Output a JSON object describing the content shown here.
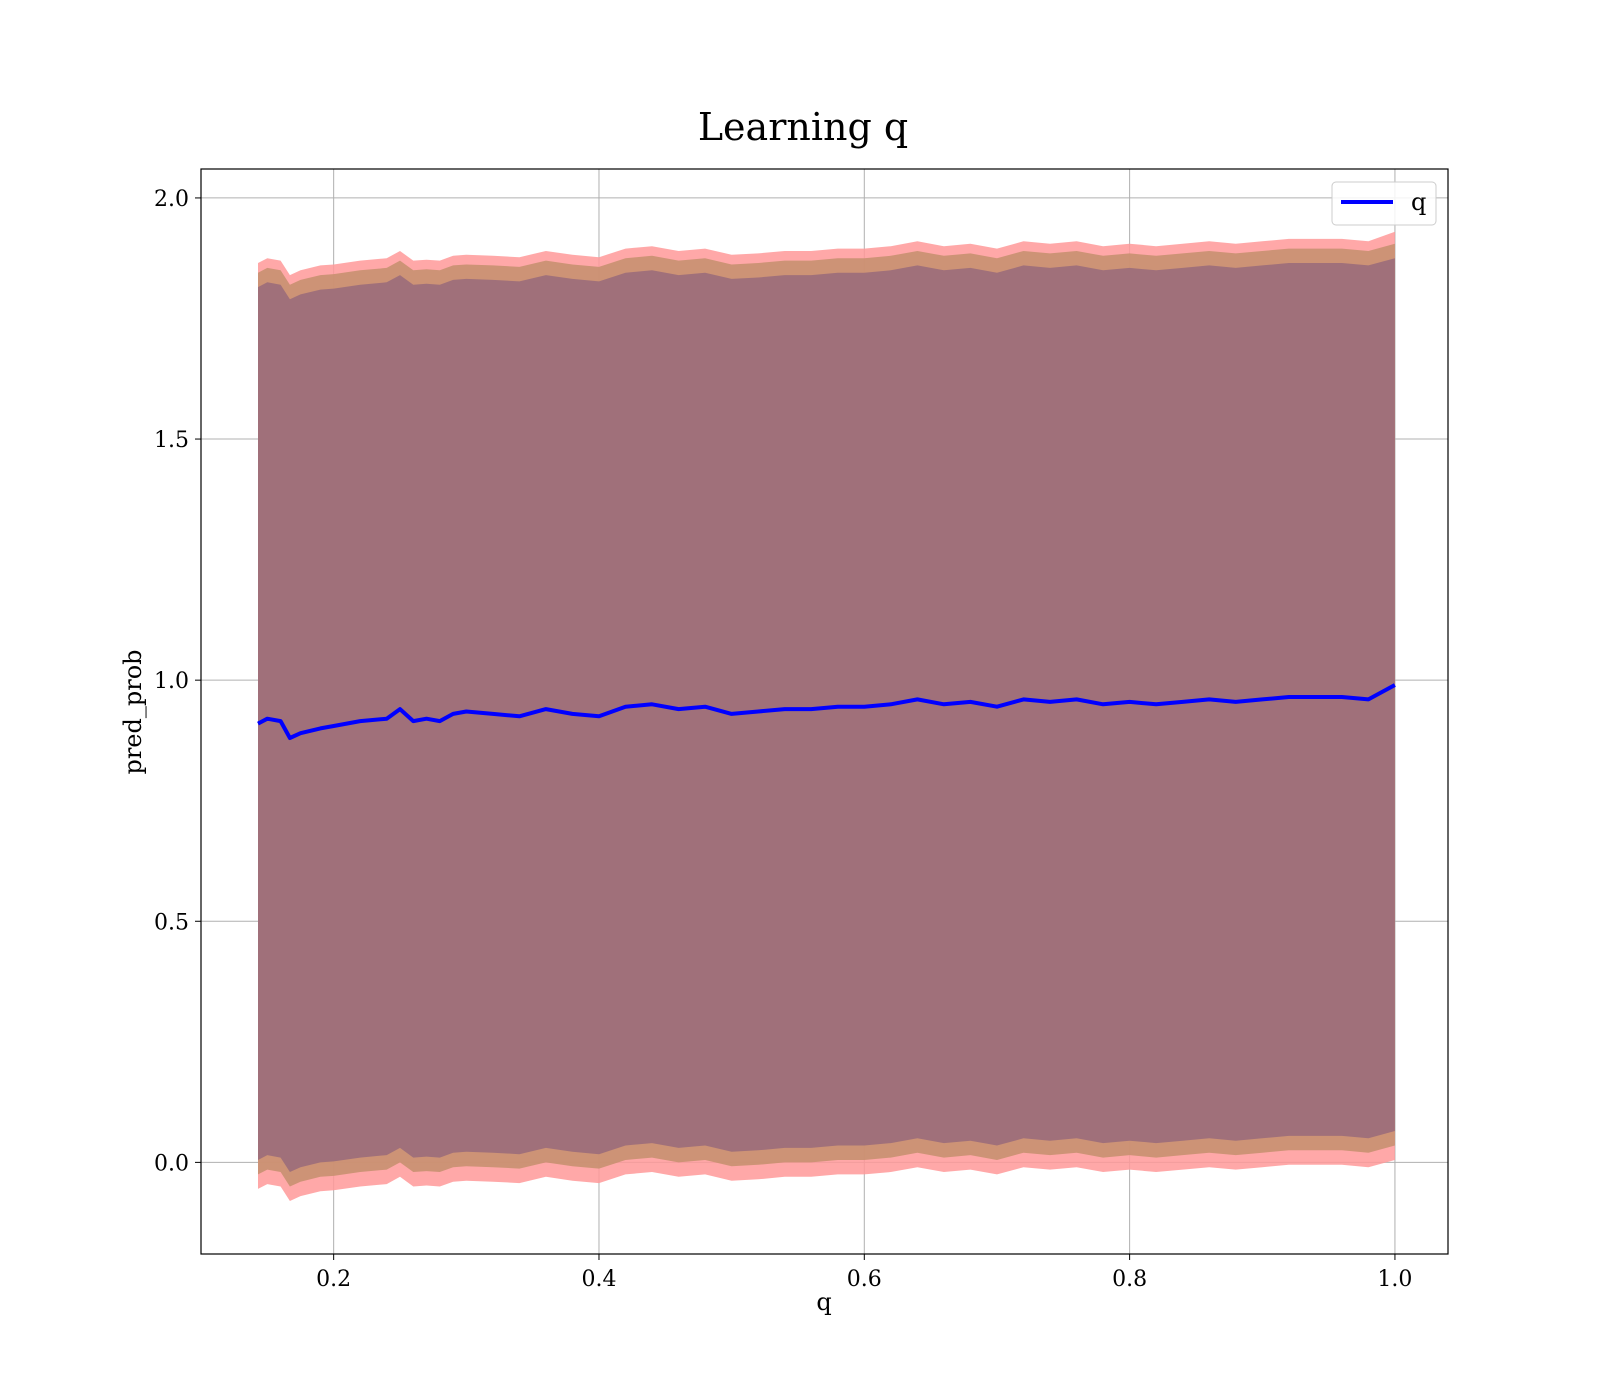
{
  "chart_data": {
    "type": "line",
    "title": "Learning q",
    "xlabel": "q",
    "ylabel": "pred_prob",
    "xlim": [
      0.1,
      1.04
    ],
    "ylim": [
      -0.19,
      2.06
    ],
    "xticks": [
      0.2,
      0.4,
      0.6,
      0.8,
      1.0
    ],
    "xtick_labels": [
      "0.2",
      "0.4",
      "0.6",
      "0.8",
      "1.0"
    ],
    "yticks": [
      0.0,
      0.5,
      1.0,
      1.5,
      2.0
    ],
    "ytick_labels": [
      "0.0",
      "0.5",
      "1.0",
      "1.5",
      "2.0"
    ],
    "grid": true,
    "legend": {
      "position": "top-right",
      "entries": [
        "q"
      ]
    },
    "colors": {
      "line": "#0000ff",
      "band_outer": "#ff9999",
      "band_mid": "#c89070",
      "band_inner": "#a0707a"
    },
    "series": [
      {
        "name": "q",
        "x": [
          0.143,
          0.15,
          0.16,
          0.167,
          0.175,
          0.19,
          0.2,
          0.22,
          0.24,
          0.25,
          0.26,
          0.27,
          0.28,
          0.29,
          0.3,
          0.32,
          0.34,
          0.36,
          0.38,
          0.4,
          0.42,
          0.44,
          0.46,
          0.48,
          0.5,
          0.52,
          0.54,
          0.56,
          0.58,
          0.6,
          0.62,
          0.64,
          0.66,
          0.68,
          0.7,
          0.72,
          0.74,
          0.76,
          0.78,
          0.8,
          0.82,
          0.84,
          0.86,
          0.88,
          0.9,
          0.92,
          0.94,
          0.96,
          0.98,
          1.0
        ],
        "values": [
          0.91,
          0.92,
          0.915,
          0.88,
          0.89,
          0.9,
          0.905,
          0.915,
          0.92,
          0.94,
          0.915,
          0.92,
          0.915,
          0.93,
          0.935,
          0.93,
          0.925,
          0.94,
          0.93,
          0.925,
          0.945,
          0.95,
          0.94,
          0.945,
          0.93,
          0.935,
          0.94,
          0.94,
          0.945,
          0.945,
          0.95,
          0.96,
          0.95,
          0.955,
          0.945,
          0.96,
          0.955,
          0.96,
          0.95,
          0.955,
          0.95,
          0.955,
          0.96,
          0.955,
          0.96,
          0.965,
          0.965,
          0.965,
          0.96,
          0.99
        ]
      }
    ],
    "bands": {
      "x": [
        0.143,
        0.15,
        0.16,
        0.167,
        0.175,
        0.19,
        0.2,
        0.22,
        0.24,
        0.25,
        0.26,
        0.27,
        0.28,
        0.29,
        0.3,
        0.32,
        0.34,
        0.36,
        0.38,
        0.4,
        0.42,
        0.44,
        0.46,
        0.48,
        0.5,
        0.52,
        0.54,
        0.56,
        0.58,
        0.6,
        0.62,
        0.64,
        0.66,
        0.68,
        0.7,
        0.72,
        0.74,
        0.76,
        0.78,
        0.8,
        0.82,
        0.84,
        0.86,
        0.88,
        0.9,
        0.92,
        0.94,
        0.96,
        0.98,
        1.0
      ],
      "outer_upper": [
        1.865,
        1.875,
        1.87,
        1.84,
        1.85,
        1.86,
        1.862,
        1.87,
        1.875,
        1.89,
        1.87,
        1.872,
        1.87,
        1.88,
        1.882,
        1.88,
        1.877,
        1.89,
        1.882,
        1.877,
        1.895,
        1.9,
        1.89,
        1.895,
        1.882,
        1.885,
        1.89,
        1.89,
        1.895,
        1.895,
        1.9,
        1.91,
        1.9,
        1.905,
        1.895,
        1.91,
        1.905,
        1.91,
        1.9,
        1.905,
        1.9,
        1.905,
        1.91,
        1.905,
        1.91,
        1.915,
        1.915,
        1.915,
        1.91,
        1.93
      ],
      "mid_upper": [
        1.845,
        1.855,
        1.85,
        1.82,
        1.83,
        1.84,
        1.842,
        1.85,
        1.855,
        1.87,
        1.85,
        1.852,
        1.85,
        1.86,
        1.862,
        1.86,
        1.857,
        1.87,
        1.862,
        1.857,
        1.875,
        1.88,
        1.87,
        1.875,
        1.862,
        1.865,
        1.87,
        1.87,
        1.875,
        1.875,
        1.88,
        1.89,
        1.88,
        1.885,
        1.875,
        1.89,
        1.885,
        1.89,
        1.88,
        1.885,
        1.88,
        1.885,
        1.89,
        1.885,
        1.89,
        1.895,
        1.895,
        1.895,
        1.89,
        1.905
      ],
      "inner_upper": [
        1.815,
        1.825,
        1.82,
        1.79,
        1.8,
        1.81,
        1.812,
        1.82,
        1.825,
        1.84,
        1.82,
        1.822,
        1.82,
        1.83,
        1.832,
        1.83,
        1.827,
        1.84,
        1.832,
        1.827,
        1.845,
        1.85,
        1.84,
        1.845,
        1.832,
        1.835,
        1.84,
        1.84,
        1.845,
        1.845,
        1.85,
        1.86,
        1.85,
        1.855,
        1.845,
        1.86,
        1.855,
        1.86,
        1.85,
        1.855,
        1.85,
        1.855,
        1.86,
        1.855,
        1.86,
        1.865,
        1.865,
        1.865,
        1.86,
        1.875
      ],
      "inner_lower": [
        0.005,
        0.015,
        0.01,
        -0.02,
        -0.01,
        0.0,
        0.002,
        0.01,
        0.015,
        0.03,
        0.01,
        0.012,
        0.01,
        0.02,
        0.022,
        0.02,
        0.017,
        0.03,
        0.022,
        0.017,
        0.035,
        0.04,
        0.03,
        0.035,
        0.022,
        0.025,
        0.03,
        0.03,
        0.035,
        0.035,
        0.04,
        0.05,
        0.04,
        0.045,
        0.035,
        0.05,
        0.045,
        0.05,
        0.04,
        0.045,
        0.04,
        0.045,
        0.05,
        0.045,
        0.05,
        0.055,
        0.055,
        0.055,
        0.05,
        0.065
      ],
      "mid_lower": [
        -0.025,
        -0.015,
        -0.02,
        -0.05,
        -0.04,
        -0.03,
        -0.028,
        -0.02,
        -0.015,
        0.0,
        -0.02,
        -0.018,
        -0.02,
        -0.01,
        -0.008,
        -0.01,
        -0.013,
        0.0,
        -0.008,
        -0.013,
        0.005,
        0.01,
        0.0,
        0.005,
        -0.008,
        -0.005,
        0.0,
        0.0,
        0.005,
        0.005,
        0.01,
        0.02,
        0.01,
        0.015,
        0.005,
        0.02,
        0.015,
        0.02,
        0.01,
        0.015,
        0.01,
        0.015,
        0.02,
        0.015,
        0.02,
        0.025,
        0.025,
        0.025,
        0.02,
        0.035
      ],
      "outer_lower": [
        -0.055,
        -0.045,
        -0.05,
        -0.08,
        -0.07,
        -0.06,
        -0.058,
        -0.05,
        -0.045,
        -0.03,
        -0.05,
        -0.048,
        -0.05,
        -0.04,
        -0.038,
        -0.04,
        -0.043,
        -0.03,
        -0.038,
        -0.043,
        -0.025,
        -0.02,
        -0.03,
        -0.025,
        -0.038,
        -0.035,
        -0.03,
        -0.03,
        -0.025,
        -0.025,
        -0.02,
        -0.01,
        -0.02,
        -0.015,
        -0.025,
        -0.01,
        -0.015,
        -0.01,
        -0.02,
        -0.015,
        -0.02,
        -0.015,
        -0.01,
        -0.015,
        -0.01,
        -0.005,
        -0.005,
        -0.005,
        -0.01,
        0.005
      ]
    }
  }
}
